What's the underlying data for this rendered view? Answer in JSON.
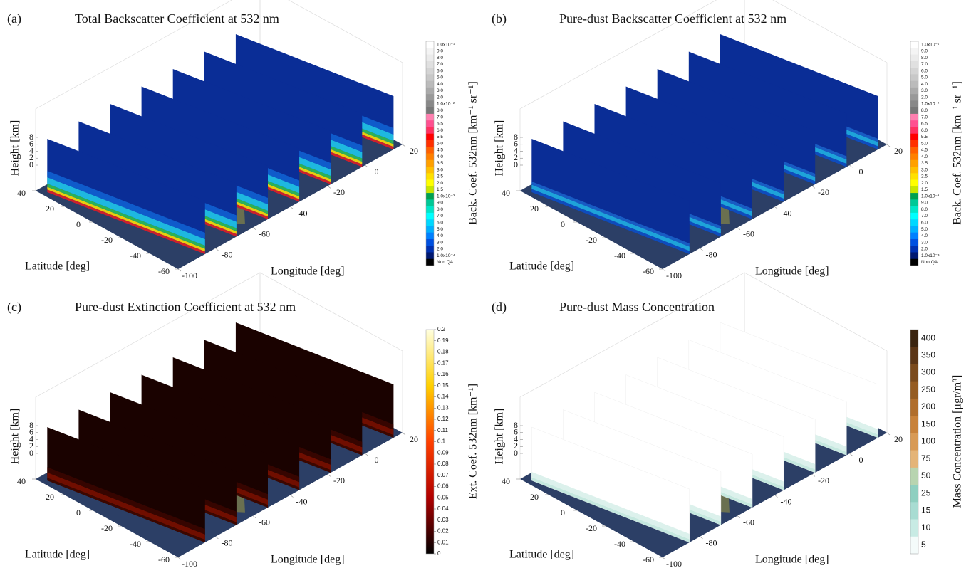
{
  "chart_data": [
    {
      "type": "curtain",
      "panel": "(a)",
      "title": "Total Backscatter Coefficient at 532 nm",
      "xlabel": "Latitude [deg]",
      "ylabel": "Longitude [deg]",
      "zlabel": "Height [km]",
      "xlim": [
        -60,
        40
      ],
      "xticks": [
        40,
        20,
        0,
        -20,
        -40,
        -60
      ],
      "ylim": [
        -100,
        20
      ],
      "yticks": [
        -100,
        -80,
        -60,
        -40,
        -20,
        0,
        20
      ],
      "zlim": [
        0,
        8
      ],
      "zticks": [
        0,
        2,
        4,
        6,
        8
      ],
      "colorbar": {
        "label": "Back. Coef. 532nm [km⁻¹ sr⁻¹]",
        "labels": [
          "1.0x10⁻¹",
          "9.0",
          "8.0",
          "7.0",
          "6.0",
          "5.0",
          "4.0",
          "3.0",
          "2.0",
          "1.0x10⁻²",
          "8.0",
          "7.0",
          "6.5",
          "6.0",
          "5.5",
          "5.0",
          "4.5",
          "4.0",
          "3.5",
          "3.0",
          "2.5",
          "2.0",
          "1.5",
          "1.0x10⁻³",
          "9.0",
          "8.0",
          "7.0",
          "6.0",
          "5.0",
          "4.0",
          "3.0",
          "2.0",
          "1.0x10⁻⁴",
          "Non QA"
        ],
        "colors": [
          "#ffffff",
          "#f4f4f4",
          "#ebebeb",
          "#e0e0e0",
          "#d4d4d4",
          "#c8c8c8",
          "#bbbbbb",
          "#aaaaaa",
          "#999999",
          "#888888",
          "#777777",
          "#ff80b0",
          "#ff5090",
          "#ff3060",
          "#ff0000",
          "#ff3000",
          "#ff6000",
          "#ff8000",
          "#ffa000",
          "#ffc000",
          "#ffe000",
          "#ffff00",
          "#c8e600",
          "#00a050",
          "#00c896",
          "#00e6c8",
          "#00ffff",
          "#00d8ff",
          "#00b0ff",
          "#0080ff",
          "#0050e0",
          "#0030b0",
          "#001870",
          "#000000"
        ]
      }
    },
    {
      "type": "curtain",
      "panel": "(b)",
      "title": "Pure-dust Backscatter Coefficient at 532 nm",
      "xlabel": "Latitude [deg]",
      "ylabel": "Longitude [deg]",
      "zlabel": "Height [km]",
      "xlim": [
        -60,
        40
      ],
      "xticks": [
        40,
        20,
        0,
        -20,
        -40,
        -60
      ],
      "ylim": [
        -100,
        20
      ],
      "yticks": [
        -100,
        -80,
        -60,
        -40,
        -20,
        0,
        20
      ],
      "zlim": [
        0,
        8
      ],
      "zticks": [
        0,
        2,
        4,
        6,
        8
      ],
      "colorbar": {
        "label": "Back. Coef. 532nm [km⁻¹ sr⁻¹]",
        "labels": [
          "1.0x10⁻¹",
          "9.0",
          "8.0",
          "7.0",
          "6.0",
          "5.0",
          "4.0",
          "3.0",
          "2.0",
          "1.0x10⁻²",
          "8.0",
          "7.0",
          "6.5",
          "6.0",
          "5.5",
          "5.0",
          "4.5",
          "4.0",
          "3.5",
          "3.0",
          "2.5",
          "2.0",
          "1.5",
          "1.0x10⁻³",
          "9.0",
          "8.0",
          "7.0",
          "6.0",
          "5.0",
          "4.0",
          "3.0",
          "2.0",
          "1.0x10⁻⁴",
          "Non QA"
        ],
        "colors": [
          "#ffffff",
          "#f4f4f4",
          "#ebebeb",
          "#e0e0e0",
          "#d4d4d4",
          "#c8c8c8",
          "#bbbbbb",
          "#aaaaaa",
          "#999999",
          "#888888",
          "#777777",
          "#ff80b0",
          "#ff5090",
          "#ff3060",
          "#ff0000",
          "#ff3000",
          "#ff6000",
          "#ff8000",
          "#ffa000",
          "#ffc000",
          "#ffe000",
          "#ffff00",
          "#c8e600",
          "#00a050",
          "#00c896",
          "#00e6c8",
          "#00ffff",
          "#00d8ff",
          "#00b0ff",
          "#0080ff",
          "#0050e0",
          "#0030b0",
          "#001870",
          "#000000"
        ]
      }
    },
    {
      "type": "curtain",
      "panel": "(c)",
      "title": "Pure-dust Extinction Coefficient at 532 nm",
      "xlabel": "Latitude [deg]",
      "ylabel": "Longitude [deg]",
      "zlabel": "Height [km]",
      "xlim": [
        -60,
        40
      ],
      "xticks": [
        40,
        20,
        0,
        -20,
        -40,
        -60
      ],
      "ylim": [
        -100,
        20
      ],
      "yticks": [
        -100,
        -80,
        -60,
        -40,
        -20,
        0,
        20
      ],
      "zlim": [
        0,
        8
      ],
      "zticks": [
        0,
        2,
        4,
        6,
        8
      ],
      "colorbar": {
        "label": "Ext. Coef. 532nm [km⁻¹]",
        "clim": [
          0,
          0.2
        ],
        "ticks": [
          0,
          0.01,
          0.02,
          0.03,
          0.04,
          0.05,
          0.06,
          0.07,
          0.08,
          0.09,
          0.1,
          0.11,
          0.12,
          0.13,
          0.14,
          0.15,
          0.16,
          0.17,
          0.18,
          0.19,
          0.2
        ],
        "colors": [
          "#000000",
          "#b00000",
          "#ff4000",
          "#ffd000",
          "#ffffe0"
        ]
      }
    },
    {
      "type": "curtain",
      "panel": "(d)",
      "title": "Pure-dust Mass Concentration",
      "xlabel": "Latitude [deg]",
      "ylabel": "Longitude [deg]",
      "zlabel": "Height [km]",
      "xlim": [
        -60,
        40
      ],
      "xticks": [
        40,
        20,
        0,
        -20,
        -40,
        -60
      ],
      "ylim": [
        -100,
        20
      ],
      "yticks": [
        -100,
        -80,
        -60,
        -40,
        -20,
        0,
        20
      ],
      "zlim": [
        0,
        8
      ],
      "zticks": [
        0,
        2,
        4,
        6,
        8
      ],
      "colorbar": {
        "label": "Mass Concentration [μgr/m³]",
        "levels": [
          400,
          350,
          300,
          250,
          200,
          150,
          100,
          75,
          50,
          25,
          15,
          10,
          5
        ],
        "colors": [
          "#3a2410",
          "#5a3516",
          "#7a4a1c",
          "#955c22",
          "#b06e2c",
          "#c8823a",
          "#d89a55",
          "#e4b478",
          "#b8d4b0",
          "#8fcfc0",
          "#a8dcd2",
          "#c8ebe4",
          "#f4fbfa"
        ]
      }
    }
  ]
}
